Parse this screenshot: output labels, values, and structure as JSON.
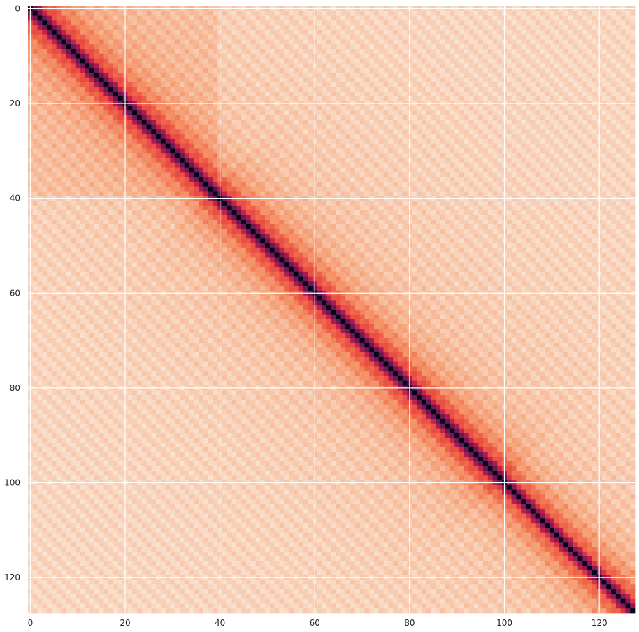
{
  "chart_data": {
    "type": "heatmap",
    "title": "",
    "xlabel": "",
    "ylabel": "",
    "n": 128,
    "xlim": [
      0,
      127
    ],
    "ylim": [
      127,
      0
    ],
    "x_ticks": [
      0,
      20,
      40,
      60,
      80,
      100,
      120
    ],
    "y_ticks": [
      0,
      20,
      40,
      60,
      80,
      100,
      120
    ],
    "x_tick_labels": [
      "0",
      "20",
      "40",
      "60",
      "80",
      "100",
      "120"
    ],
    "y_tick_labels": [
      "0",
      "20",
      "40",
      "60",
      "80",
      "100",
      "120"
    ],
    "grid": true,
    "colormap": "rocket",
    "colorbar": false,
    "structure": "symmetric matrix: darkest (black) on the main diagonal, dark purple/red band adjacent to it, fading to light peach away from the diagonal, with diagonal striping parallel to the main diagonal and a checkered pattern around rows/columns 40-100",
    "colors": {
      "diagonal": "#03051a",
      "near_diagonal": "#e83f3f",
      "mid": "#f4875e",
      "far": "#f9dac6",
      "grid": "#ffffff"
    }
  }
}
